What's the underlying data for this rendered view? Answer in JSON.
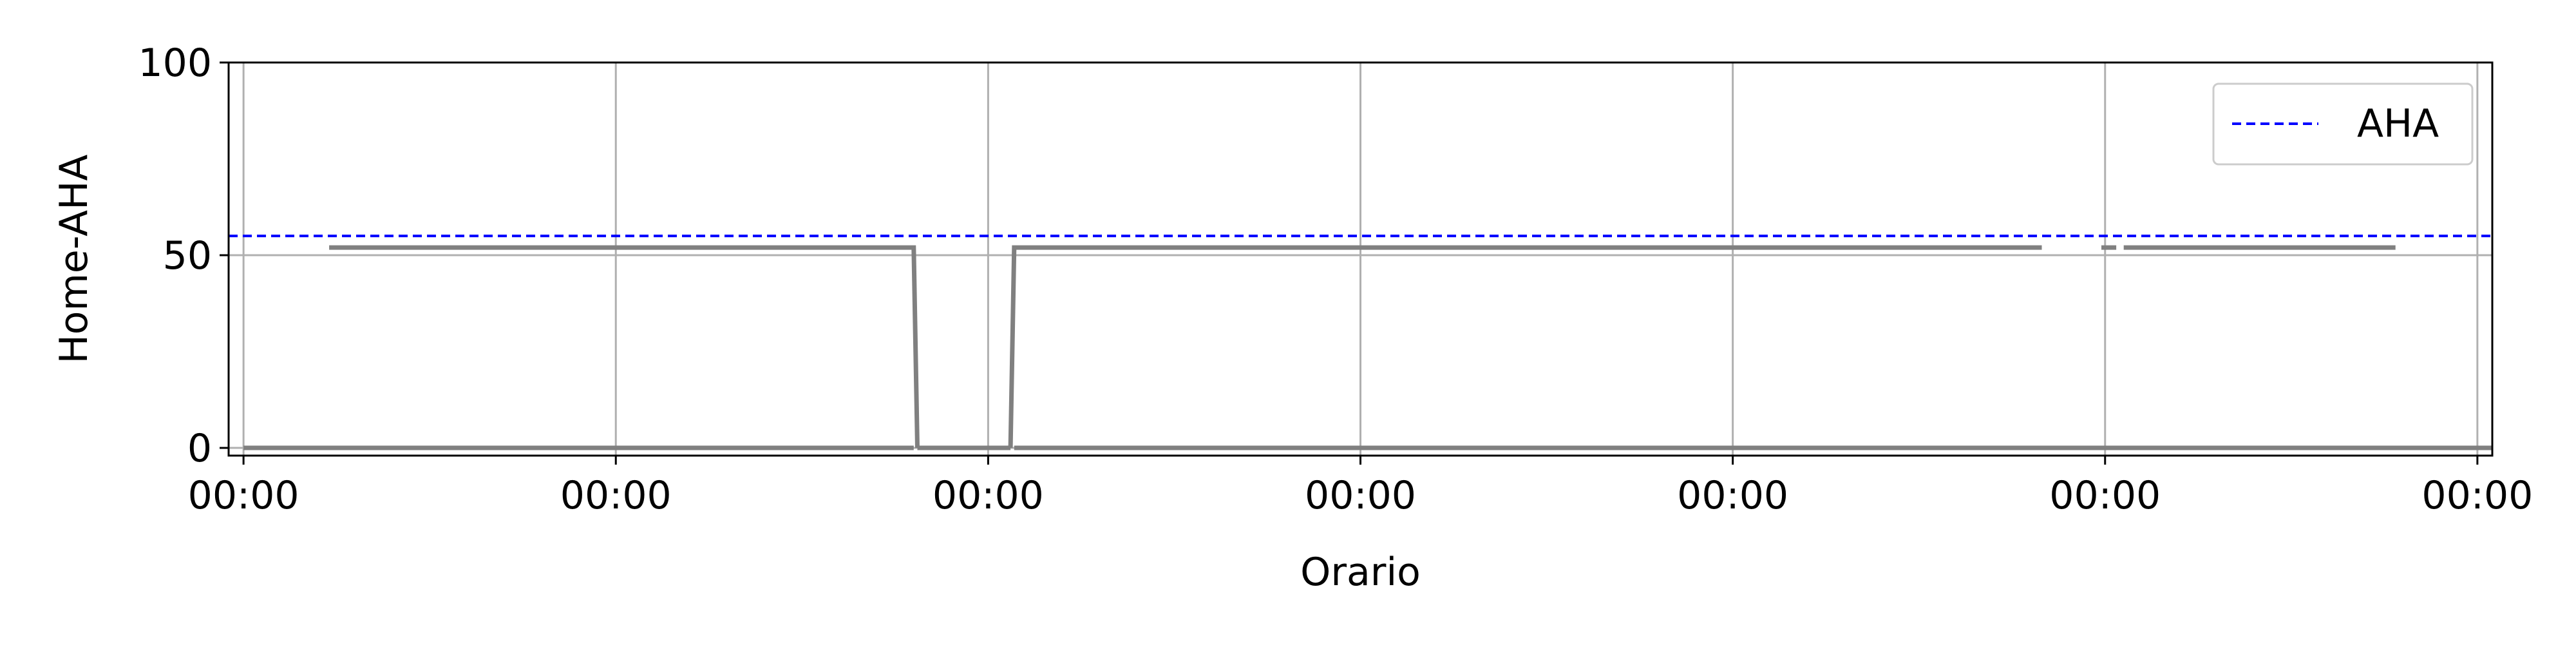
{
  "chart_data": {
    "type": "line",
    "title": "",
    "xlabel": "Orario",
    "ylabel": "Home-AHA",
    "xlim": [
      -0.04,
      6.04
    ],
    "ylim": [
      -2,
      100
    ],
    "x_ticks": [
      {
        "value": 0,
        "label": "00:00"
      },
      {
        "value": 1,
        "label": "00:00"
      },
      {
        "value": 2,
        "label": "00:00"
      },
      {
        "value": 3,
        "label": "00:00"
      },
      {
        "value": 4,
        "label": "00:00"
      },
      {
        "value": 5,
        "label": "00:00"
      },
      {
        "value": 6,
        "label": "00:00"
      }
    ],
    "y_ticks": [
      {
        "value": 0,
        "label": "0"
      },
      {
        "value": 50,
        "label": "50"
      },
      {
        "value": 100,
        "label": "100"
      }
    ],
    "grid": true,
    "legend": {
      "placement": "top-right",
      "entries": [
        {
          "label": "AHA",
          "style": "dashed",
          "color": "#0000ff"
        }
      ]
    },
    "reference_line": {
      "name": "AHA",
      "y": 55,
      "color": "#0000ff",
      "style": "dashed"
    },
    "series": [
      {
        "color": "#808080",
        "segments": [
          [
            [
              0.0,
              0
            ],
            [
              1.8,
              0
            ]
          ],
          [
            [
              0.23,
              52
            ],
            [
              1.8,
              52
            ],
            [
              1.81,
              0
            ]
          ],
          [
            [
              2.06,
              0
            ],
            [
              2.07,
              52
            ],
            [
              4.83,
              52
            ]
          ],
          [
            [
              1.81,
              0
            ],
            [
              2.06,
              0
            ]
          ],
          [
            [
              2.07,
              0
            ],
            [
              6.04,
              0
            ]
          ],
          [
            [
              4.99,
              52
            ],
            [
              5.03,
              52
            ]
          ],
          [
            [
              5.05,
              52
            ],
            [
              5.78,
              52
            ]
          ]
        ]
      }
    ]
  }
}
